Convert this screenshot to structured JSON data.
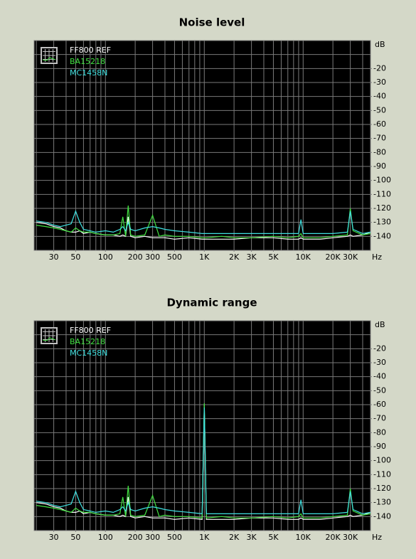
{
  "chart_data": [
    {
      "type": "line",
      "title": "Noise level",
      "log_x": true,
      "xlim": [
        19,
        48000
      ],
      "ylim": [
        -150,
        0
      ],
      "x_unit": "Hz",
      "y_unit": "dB",
      "xticks": [
        30,
        50,
        100,
        200,
        300,
        500,
        {
          "value": 1000,
          "label": "1K"
        },
        {
          "value": 2000,
          "label": "2K"
        },
        {
          "value": 3000,
          "label": "3K"
        },
        {
          "value": 5000,
          "label": "5K"
        },
        {
          "value": 10000,
          "label": "10K"
        },
        {
          "value": 20000,
          "label": "20K"
        },
        {
          "value": 30000,
          "label": "30K"
        }
      ],
      "yticks": [
        -20,
        -30,
        -40,
        -50,
        -60,
        -70,
        -80,
        -90,
        -100,
        -110,
        -120,
        -130,
        -140
      ],
      "xgrid": [
        20,
        30,
        40,
        50,
        60,
        70,
        80,
        90,
        100,
        200,
        300,
        400,
        500,
        600,
        700,
        800,
        900,
        1000,
        2000,
        3000,
        4000,
        5000,
        6000,
        7000,
        8000,
        9000,
        10000,
        20000,
        30000,
        40000
      ],
      "ygrid": [
        -10,
        -20,
        -30,
        -40,
        -50,
        -60,
        -70,
        -80,
        -90,
        -100,
        -110,
        -120,
        -130,
        -140
      ],
      "x": [
        20,
        25,
        30,
        35,
        40,
        45,
        50,
        55,
        60,
        70,
        80,
        100,
        120,
        140,
        150,
        160,
        170,
        180,
        200,
        250,
        300,
        350,
        400,
        500,
        700,
        950,
        1000,
        1050,
        1500,
        2000,
        3000,
        5000,
        7000,
        9000,
        9500,
        10000,
        15000,
        20000,
        28000,
        30000,
        32000,
        40000,
        48000
      ],
      "series": [
        {
          "name": "FF800 REF",
          "color": "#ffffff",
          "values": [
            -130,
            -131,
            -133,
            -134,
            -136,
            -137,
            -137,
            -136,
            -138,
            -137,
            -138,
            -139,
            -139,
            -140,
            -139,
            -140,
            -126,
            -140,
            -141,
            -140,
            -141,
            -141,
            -141,
            -142,
            -141,
            -142,
            -142,
            -142,
            -142,
            -142,
            -141,
            -141,
            -142,
            -142,
            -141,
            -142,
            -142,
            -141,
            -140,
            -139,
            -140,
            -139,
            -137
          ]
        },
        {
          "name": "BA15218",
          "color": "#40e040",
          "values": [
            -132,
            -133,
            -134,
            -135,
            -136,
            -137,
            -134,
            -136,
            -137,
            -137,
            -138,
            -139,
            -139,
            -138,
            -126,
            -140,
            -118,
            -139,
            -140,
            -139,
            -125,
            -140,
            -139,
            -140,
            -140,
            -141,
            -141,
            -141,
            -140,
            -141,
            -141,
            -140,
            -141,
            -140,
            -138,
            -141,
            -141,
            -140,
            -139,
            -120,
            -136,
            -139,
            -138
          ]
        },
        {
          "name": "MC1458N",
          "color": "#40e0e0",
          "values": [
            -129,
            -130,
            -132,
            -133,
            -132,
            -131,
            -122,
            -130,
            -135,
            -136,
            -137,
            -136,
            -137,
            -135,
            -133,
            -136,
            -130,
            -135,
            -136,
            -134,
            -133,
            -134,
            -135,
            -136,
            -137,
            -138,
            -138,
            -138,
            -138,
            -138,
            -138,
            -138,
            -138,
            -138,
            -128,
            -138,
            -138,
            -138,
            -137,
            -122,
            -135,
            -138,
            -137
          ]
        }
      ]
    },
    {
      "type": "line",
      "title": "Dynamic range",
      "log_x": true,
      "xlim": [
        19,
        48000
      ],
      "ylim": [
        -150,
        0
      ],
      "x_unit": "Hz",
      "y_unit": "dB",
      "xticks": [
        30,
        50,
        100,
        200,
        300,
        500,
        {
          "value": 1000,
          "label": "1K"
        },
        {
          "value": 2000,
          "label": "2K"
        },
        {
          "value": 3000,
          "label": "3K"
        },
        {
          "value": 5000,
          "label": "5K"
        },
        {
          "value": 10000,
          "label": "10K"
        },
        {
          "value": 20000,
          "label": "20K"
        },
        {
          "value": 30000,
          "label": "30K"
        }
      ],
      "yticks": [
        -20,
        -30,
        -40,
        -50,
        -60,
        -70,
        -80,
        -90,
        -100,
        -110,
        -120,
        -130,
        -140
      ],
      "xgrid": [
        20,
        30,
        40,
        50,
        60,
        70,
        80,
        90,
        100,
        200,
        300,
        400,
        500,
        600,
        700,
        800,
        900,
        1000,
        2000,
        3000,
        4000,
        5000,
        6000,
        7000,
        8000,
        9000,
        10000,
        20000,
        30000,
        40000
      ],
      "ygrid": [
        -10,
        -20,
        -30,
        -40,
        -50,
        -60,
        -70,
        -80,
        -90,
        -100,
        -110,
        -120,
        -130,
        -140
      ],
      "x": [
        20,
        25,
        30,
        35,
        40,
        45,
        50,
        55,
        60,
        70,
        80,
        100,
        120,
        140,
        150,
        160,
        170,
        180,
        200,
        250,
        300,
        350,
        400,
        500,
        700,
        950,
        1000,
        1050,
        1500,
        2000,
        3000,
        5000,
        7000,
        9000,
        9500,
        10000,
        15000,
        20000,
        28000,
        30000,
        32000,
        40000,
        48000
      ],
      "series": [
        {
          "name": "FF800 REF",
          "color": "#ffffff",
          "values": [
            -130,
            -131,
            -133,
            -134,
            -136,
            -137,
            -137,
            -136,
            -138,
            -137,
            -138,
            -139,
            -139,
            -140,
            -139,
            -140,
            -126,
            -140,
            -141,
            -140,
            -141,
            -141,
            -141,
            -142,
            -141,
            -142,
            -60,
            -142,
            -142,
            -142,
            -141,
            -141,
            -142,
            -142,
            -141,
            -142,
            -142,
            -141,
            -140,
            -139,
            -140,
            -139,
            -137
          ]
        },
        {
          "name": "BA15218",
          "color": "#40e040",
          "values": [
            -132,
            -133,
            -134,
            -135,
            -136,
            -137,
            -134,
            -136,
            -137,
            -137,
            -138,
            -139,
            -139,
            -138,
            -126,
            -140,
            -118,
            -139,
            -140,
            -139,
            -125,
            -140,
            -139,
            -140,
            -140,
            -141,
            -59,
            -141,
            -140,
            -141,
            -141,
            -140,
            -141,
            -140,
            -138,
            -141,
            -141,
            -140,
            -139,
            -120,
            -136,
            -139,
            -138
          ]
        },
        {
          "name": "MC1458N",
          "color": "#40e0e0",
          "values": [
            -129,
            -130,
            -132,
            -133,
            -132,
            -131,
            -122,
            -130,
            -135,
            -136,
            -137,
            -136,
            -137,
            -135,
            -133,
            -136,
            -130,
            -135,
            -136,
            -134,
            -133,
            -134,
            -135,
            -136,
            -137,
            -138,
            -62,
            -138,
            -138,
            -138,
            -138,
            -138,
            -138,
            -138,
            -128,
            -138,
            -138,
            -138,
            -137,
            -122,
            -135,
            -138,
            -137
          ]
        }
      ]
    }
  ]
}
